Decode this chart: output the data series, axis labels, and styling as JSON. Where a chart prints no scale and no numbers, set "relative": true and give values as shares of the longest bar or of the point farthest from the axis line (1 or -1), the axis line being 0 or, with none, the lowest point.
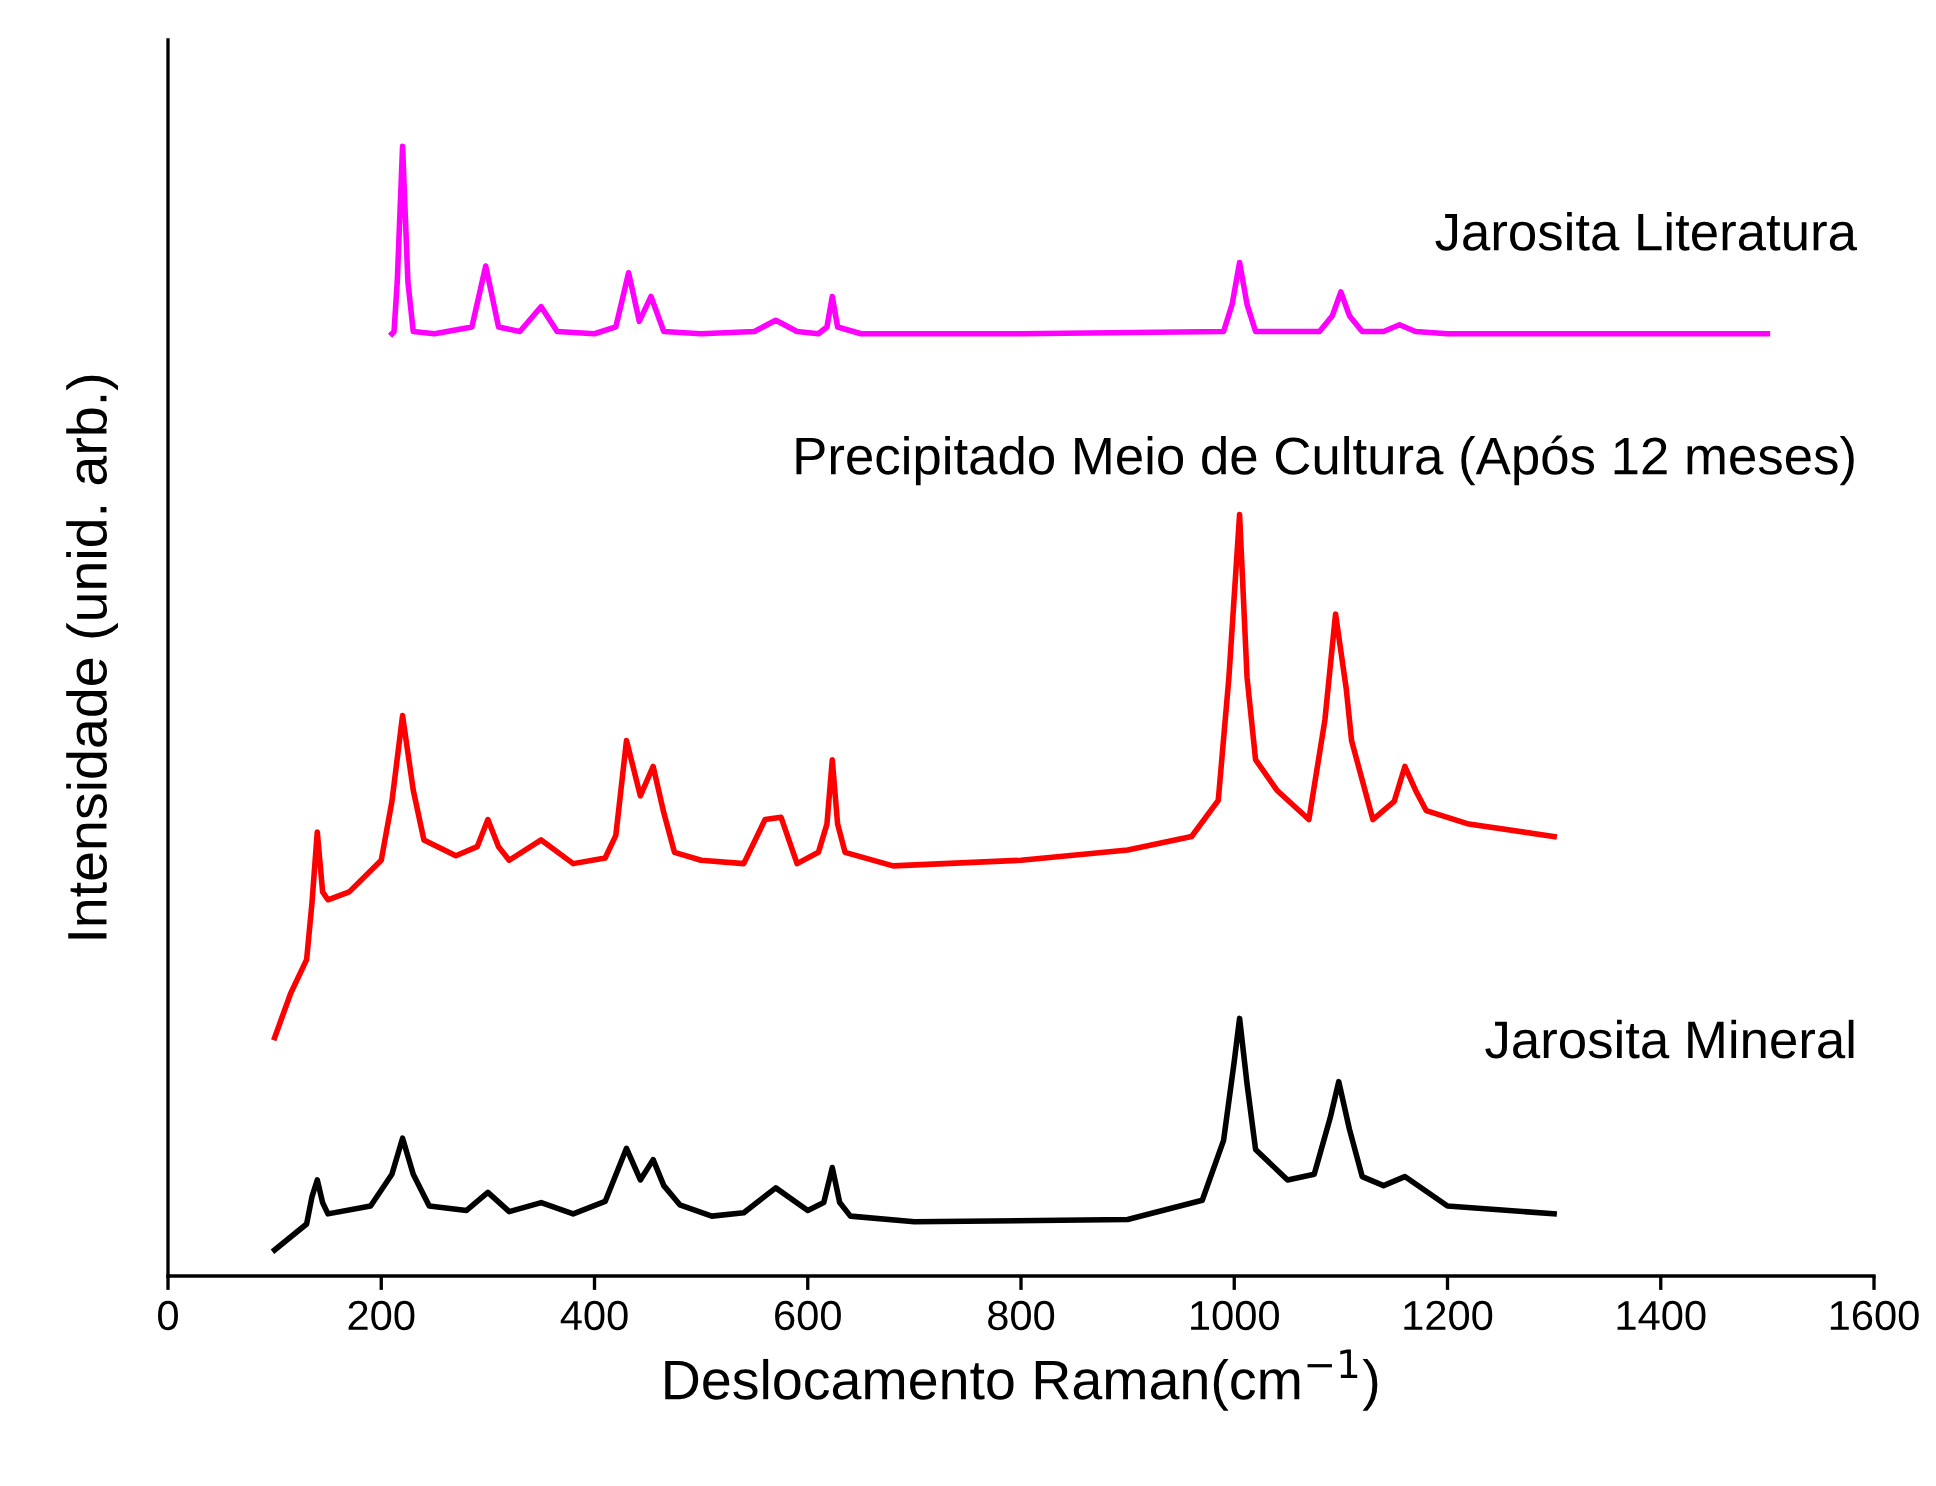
{
  "chart_data": {
    "type": "line",
    "relative": true,
    "xlabel": "Deslocamento Raman(cm$^{−1}$)",
    "ylabel": "Intensidade (unid. arb.)",
    "xlim": [
      0,
      1600
    ],
    "xticks": [
      0,
      200,
      400,
      600,
      800,
      1000,
      1200,
      1400,
      1600
    ],
    "tick_labels": "x",
    "grid": false,
    "legend": false,
    "marker": "none",
    "line_style": "solid",
    "series": [
      {
        "name": "Jarosita Literatura",
        "color": "#ff00ff",
        "x": [
          210,
          212,
          215,
          220,
          225,
          230,
          250,
          285,
          298,
          310,
          330,
          350,
          365,
          400,
          420,
          432,
          442,
          453,
          465,
          500,
          550,
          570,
          590,
          610,
          618,
          623,
          628,
          650,
          800,
          990,
          998,
          1005,
          1012,
          1020,
          1080,
          1092,
          1100,
          1108,
          1120,
          1140,
          1155,
          1170,
          1200,
          1350,
          1500
        ],
        "values": [
          0.834,
          0.836,
          0.88,
          1.0,
          0.88,
          0.836,
          0.834,
          0.84,
          0.894,
          0.84,
          0.836,
          0.858,
          0.836,
          0.834,
          0.84,
          0.888,
          0.845,
          0.867,
          0.836,
          0.834,
          0.836,
          0.846,
          0.836,
          0.834,
          0.84,
          0.867,
          0.84,
          0.834,
          0.834,
          0.836,
          0.86,
          0.897,
          0.86,
          0.836,
          0.836,
          0.85,
          0.871,
          0.85,
          0.836,
          0.836,
          0.842,
          0.836,
          0.834,
          0.834,
          0.834
        ]
      },
      {
        "name": "Precipitado Meio de Cultura (Após 12 meses)",
        "color": "#ff0000",
        "x": [
          100,
          115,
          130,
          135,
          140,
          145,
          150,
          170,
          200,
          210,
          220,
          230,
          240,
          270,
          290,
          300,
          310,
          320,
          350,
          380,
          410,
          420,
          430,
          443,
          455,
          465,
          475,
          500,
          540,
          560,
          575,
          590,
          610,
          618,
          623,
          628,
          635,
          680,
          800,
          900,
          960,
          985,
          995,
          1005,
          1012,
          1020,
          1040,
          1070,
          1085,
          1095,
          1105,
          1110,
          1130,
          1150,
          1160,
          1170,
          1180,
          1220,
          1300
        ],
        "values": [
          0.211,
          0.25,
          0.28,
          0.33,
          0.393,
          0.34,
          0.333,
          0.34,
          0.368,
          0.42,
          0.496,
          0.43,
          0.386,
          0.372,
          0.38,
          0.404,
          0.38,
          0.368,
          0.386,
          0.365,
          0.37,
          0.39,
          0.474,
          0.425,
          0.451,
          0.41,
          0.375,
          0.368,
          0.365,
          0.404,
          0.406,
          0.365,
          0.375,
          0.4,
          0.457,
          0.4,
          0.375,
          0.363,
          0.368,
          0.377,
          0.389,
          0.421,
          0.53,
          0.674,
          0.53,
          0.457,
          0.43,
          0.404,
          0.492,
          0.586,
          0.52,
          0.474,
          0.404,
          0.42,
          0.451,
          0.43,
          0.412,
          0.4,
          0.389
        ]
      },
      {
        "name": "Jarosita Mineral",
        "color": "#000000",
        "x": [
          100,
          130,
          135,
          140,
          145,
          150,
          190,
          210,
          220,
          230,
          245,
          280,
          300,
          320,
          350,
          380,
          410,
          430,
          443,
          455,
          465,
          480,
          510,
          540,
          570,
          600,
          615,
          623,
          630,
          640,
          700,
          900,
          970,
          990,
          1000,
          1005,
          1012,
          1020,
          1050,
          1075,
          1090,
          1098,
          1108,
          1120,
          1140,
          1160,
          1200,
          1300
        ],
        "values": [
          0.023,
          0.046,
          0.07,
          0.085,
          0.065,
          0.055,
          0.062,
          0.09,
          0.122,
          0.09,
          0.062,
          0.058,
          0.074,
          0.057,
          0.065,
          0.055,
          0.066,
          0.113,
          0.085,
          0.103,
          0.08,
          0.063,
          0.053,
          0.056,
          0.078,
          0.058,
          0.065,
          0.096,
          0.065,
          0.053,
          0.048,
          0.05,
          0.067,
          0.12,
          0.19,
          0.228,
          0.17,
          0.112,
          0.085,
          0.09,
          0.14,
          0.172,
          0.13,
          0.088,
          0.08,
          0.088,
          0.062,
          0.055
        ]
      }
    ]
  }
}
